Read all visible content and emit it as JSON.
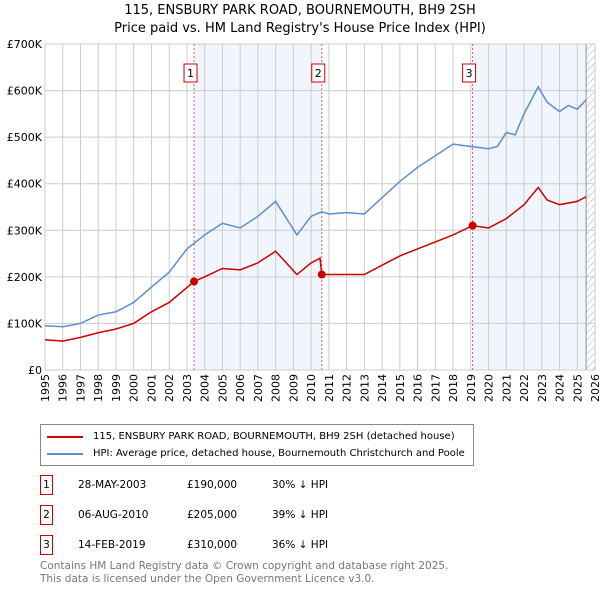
{
  "title": "115, ENSBURY PARK ROAD, BOURNEMOUTH, BH9 2SH",
  "subtitle": "Price paid vs. HM Land Registry's House Price Index (HPI)",
  "legend": [
    {
      "label": "115, ENSBURY PARK ROAD, BOURNEMOUTH, BH9 2SH (detached house)",
      "color": "#cc0000"
    },
    {
      "label": "HPI: Average price, detached house, Bournemouth Christchurch and Poole",
      "color": "#5b8fd0"
    }
  ],
  "transactions": [
    {
      "num": "1",
      "date": "28-MAY-2003",
      "price": "£190,000",
      "hpi": "30% ↓ HPI"
    },
    {
      "num": "2",
      "date": "06-AUG-2010",
      "price": "£205,000",
      "hpi": "39% ↓ HPI"
    },
    {
      "num": "3",
      "date": "14-FEB-2019",
      "price": "£310,000",
      "hpi": "36% ↓ HPI"
    }
  ],
  "footer": [
    "Contains HM Land Registry data © Crown copyright and database right 2025.",
    "This data is licensed under the Open Government Licence v3.0."
  ],
  "chart_data": {
    "type": "line",
    "xlim": [
      1995,
      2026
    ],
    "ylim": [
      0,
      700000
    ],
    "yticks": [
      0,
      100000,
      200000,
      300000,
      400000,
      500000,
      600000,
      700000
    ],
    "yticklabels": [
      "£0",
      "£100K",
      "£200K",
      "£300K",
      "£400K",
      "£500K",
      "£600K",
      "£700K"
    ],
    "xticks": [
      1995,
      1996,
      1997,
      1998,
      1999,
      2000,
      2001,
      2002,
      2003,
      2004,
      2005,
      2006,
      2007,
      2008,
      2009,
      2010,
      2011,
      2012,
      2013,
      2014,
      2015,
      2016,
      2017,
      2018,
      2019,
      2020,
      2021,
      2022,
      2023,
      2024,
      2025,
      2026
    ],
    "grid": true,
    "shaded_ranges": [
      [
        2003.4,
        2010.6
      ],
      [
        2019.1,
        2025.5
      ]
    ],
    "hatched_from": 2025.5,
    "sales": [
      {
        "label": "1",
        "x": 2003.4,
        "y": 190000
      },
      {
        "label": "2",
        "x": 2010.6,
        "y": 205000
      },
      {
        "label": "3",
        "x": 2019.1,
        "y": 310000
      }
    ],
    "series": [
      {
        "name": "HPI",
        "color": "#5b8fd0",
        "x": [
          1995,
          1996,
          1997,
          1998,
          1999,
          2000,
          2001,
          2002,
          2003,
          2004,
          2005,
          2006,
          2007,
          2008,
          2009.2,
          2010,
          2010.6,
          2011,
          2012,
          2013,
          2014,
          2015,
          2016,
          2017,
          2018,
          2019,
          2020,
          2020.5,
          2021,
          2021.5,
          2022,
          2022.8,
          2023.3,
          2024,
          2024.5,
          2025,
          2025.5
        ],
        "y": [
          95000,
          93000,
          100000,
          118000,
          125000,
          145000,
          178000,
          210000,
          260000,
          290000,
          315000,
          305000,
          330000,
          362000,
          290000,
          330000,
          340000,
          335000,
          338000,
          335000,
          370000,
          405000,
          435000,
          460000,
          485000,
          480000,
          475000,
          480000,
          510000,
          505000,
          550000,
          608000,
          575000,
          555000,
          568000,
          560000,
          580000
        ]
      },
      {
        "name": "Price paid",
        "color": "#cc0000",
        "x": [
          1995,
          1996,
          1997,
          1998,
          1999,
          2000,
          2001,
          2002,
          2003.4,
          2004,
          2005,
          2006,
          2007,
          2008,
          2009.2,
          2010,
          2010.5,
          2010.6,
          2012,
          2013,
          2014,
          2015,
          2016,
          2017,
          2018,
          2019.1,
          2020,
          2021,
          2022,
          2022.8,
          2023.3,
          2024,
          2025,
          2025.5
        ],
        "y": [
          65000,
          62000,
          70000,
          80000,
          88000,
          100000,
          125000,
          145000,
          190000,
          200000,
          218000,
          215000,
          230000,
          255000,
          205000,
          230000,
          240000,
          205000,
          205000,
          205000,
          225000,
          245000,
          260000,
          275000,
          290000,
          310000,
          305000,
          325000,
          355000,
          392000,
          365000,
          355000,
          362000,
          372000
        ]
      }
    ]
  }
}
